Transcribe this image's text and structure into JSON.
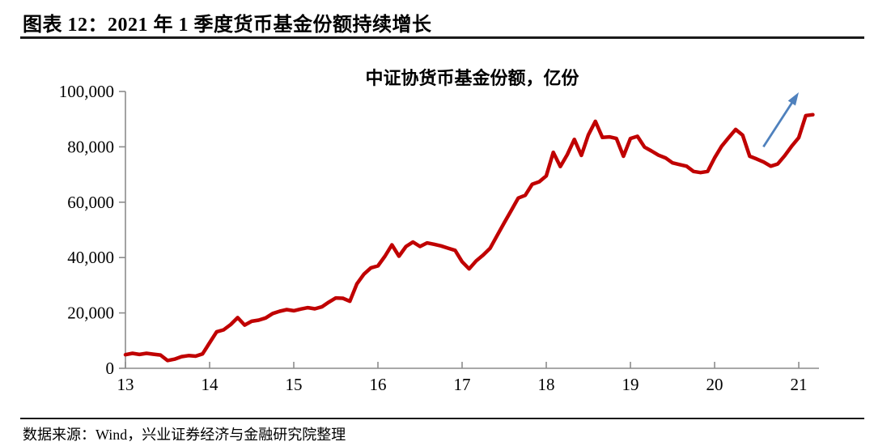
{
  "header": {
    "title": "图表 12：2021 年 1 季度货币基金份额持续增长"
  },
  "source_note": "数据来源：Wind，兴业证券经济与金融研究院整理",
  "chart_data": {
    "type": "line",
    "title": "中证协货币基金份额，亿份",
    "xlabel": "",
    "ylabel": "",
    "grid": false,
    "legend": "none",
    "xlim": [
      2013,
      2021.24
    ],
    "ylim": [
      0,
      100000
    ],
    "yticks": [
      0,
      20000,
      40000,
      60000,
      80000,
      100000
    ],
    "ytick_labels": [
      "0",
      "20,000",
      "40,000",
      "60,000",
      "80,000",
      "100,000"
    ],
    "xticks": [
      2013,
      2014,
      2015,
      2016,
      2017,
      2018,
      2019,
      2020,
      2021
    ],
    "xtick_labels": [
      "13",
      "14",
      "15",
      "16",
      "17",
      "18",
      "19",
      "20",
      "21"
    ],
    "axis_color": "#8c8c8c",
    "annotation": {
      "type": "arrow",
      "color": "#4f81bd",
      "from": {
        "t": 2020.58,
        "v": 80000
      },
      "to": {
        "t": 2021.0,
        "v": 99700
      }
    },
    "series": [
      {
        "name": "中证协货币基金份额",
        "unit": "亿份",
        "color": "#c00000",
        "months": [
          "2013-01",
          "2013-02",
          "2013-03",
          "2013-04",
          "2013-05",
          "2013-06",
          "2013-07",
          "2013-08",
          "2013-09",
          "2013-10",
          "2013-11",
          "2013-12",
          "2014-01",
          "2014-02",
          "2014-03",
          "2014-04",
          "2014-05",
          "2014-06",
          "2014-07",
          "2014-08",
          "2014-09",
          "2014-10",
          "2014-11",
          "2014-12",
          "2015-01",
          "2015-02",
          "2015-03",
          "2015-04",
          "2015-05",
          "2015-06",
          "2015-07",
          "2015-08",
          "2015-09",
          "2015-10",
          "2015-11",
          "2015-12",
          "2016-01",
          "2016-02",
          "2016-03",
          "2016-04",
          "2016-05",
          "2016-06",
          "2016-07",
          "2016-08",
          "2016-09",
          "2016-10",
          "2016-11",
          "2016-12",
          "2017-01",
          "2017-02",
          "2017-03",
          "2017-04",
          "2017-05",
          "2017-06",
          "2017-07",
          "2017-08",
          "2017-09",
          "2017-10",
          "2017-11",
          "2017-12",
          "2018-01",
          "2018-02",
          "2018-03",
          "2018-04",
          "2018-05",
          "2018-06",
          "2018-07",
          "2018-08",
          "2018-09",
          "2018-10",
          "2018-11",
          "2018-12",
          "2019-01",
          "2019-02",
          "2019-03",
          "2019-04",
          "2019-05",
          "2019-06",
          "2019-07",
          "2019-08",
          "2019-09",
          "2019-10",
          "2019-11",
          "2019-12",
          "2020-01",
          "2020-02",
          "2020-03",
          "2020-04",
          "2020-05",
          "2020-06",
          "2020-07",
          "2020-08",
          "2020-09",
          "2020-10",
          "2020-11",
          "2020-12",
          "2021-01",
          "2021-02",
          "2021-03"
        ],
        "values": [
          4900,
          5400,
          5000,
          5400,
          5100,
          4800,
          2800,
          3300,
          4200,
          4600,
          4400,
          5200,
          9200,
          13200,
          13900,
          15800,
          18300,
          15600,
          17000,
          17400,
          18200,
          19800,
          20600,
          21200,
          20800,
          21400,
          21900,
          21500,
          22200,
          23900,
          25400,
          25300,
          24200,
          30500,
          34000,
          36300,
          37000,
          40500,
          44600,
          40500,
          44000,
          45600,
          44000,
          45300,
          44800,
          44200,
          43400,
          42600,
          38500,
          35900,
          38800,
          40900,
          43400,
          48000,
          52500,
          57000,
          61500,
          62500,
          66500,
          67400,
          69500,
          78000,
          72900,
          77200,
          82700,
          76900,
          84300,
          89200,
          83400,
          83600,
          83000,
          76600,
          83000,
          83800,
          79900,
          78500,
          77000,
          76000,
          74200,
          73600,
          73000,
          71100,
          70700,
          71100,
          76000,
          80200,
          83300,
          86300,
          84200,
          76600,
          75600,
          74500,
          73000,
          73800,
          76800,
          80300,
          83300,
          91300,
          91600
        ]
      }
    ]
  }
}
